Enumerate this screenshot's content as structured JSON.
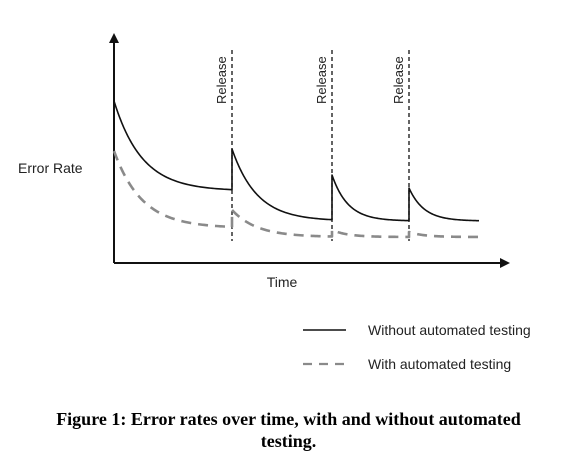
{
  "chart_data": {
    "type": "line",
    "xlabel": "Time",
    "ylabel": "Error Rate",
    "release_label": "Release",
    "releases": [
      {
        "x": 118
      },
      {
        "x": 218
      },
      {
        "x": 295
      }
    ],
    "x_range": [
      0,
      365
    ],
    "y_range": [
      0,
      160
    ],
    "series": [
      {
        "name": "Without automated testing",
        "style": "solid",
        "color": "#111111",
        "segments": [
          {
            "x0": 0,
            "x1": 118,
            "y_start": 160,
            "y_end": 70,
            "decay": 28
          },
          {
            "x0": 118,
            "x1": 218,
            "y_start": 112,
            "y_end": 40,
            "decay": 25
          },
          {
            "x0": 218,
            "x1": 295,
            "y_start": 86,
            "y_end": 40,
            "decay": 16
          },
          {
            "x0": 295,
            "x1": 365,
            "y_start": 73,
            "y_end": 40,
            "decay": 15
          }
        ]
      },
      {
        "name": "With automated testing",
        "style": "dashed",
        "color": "#8a8a8a",
        "segments": [
          {
            "x0": 0,
            "x1": 118,
            "y_start": 110,
            "y_end": 33,
            "decay": 28
          },
          {
            "x0": 118,
            "x1": 218,
            "y_start": 51,
            "y_end": 24,
            "decay": 25
          },
          {
            "x0": 218,
            "x1": 295,
            "y_start": 31,
            "y_end": 24,
            "decay": 16
          },
          {
            "x0": 295,
            "x1": 365,
            "y_start": 29,
            "y_end": 24,
            "decay": 15
          }
        ]
      }
    ],
    "legend": [
      {
        "label": "Without automated testing",
        "style": "solid",
        "color": "#111111"
      },
      {
        "label": "With automated testing",
        "style": "dashed",
        "color": "#8a8a8a"
      }
    ],
    "legend_position": "bottom-right",
    "grid": false
  },
  "caption": {
    "line1": "Figure 1: Error rates over time, with and without automated",
    "line2": "testing."
  }
}
